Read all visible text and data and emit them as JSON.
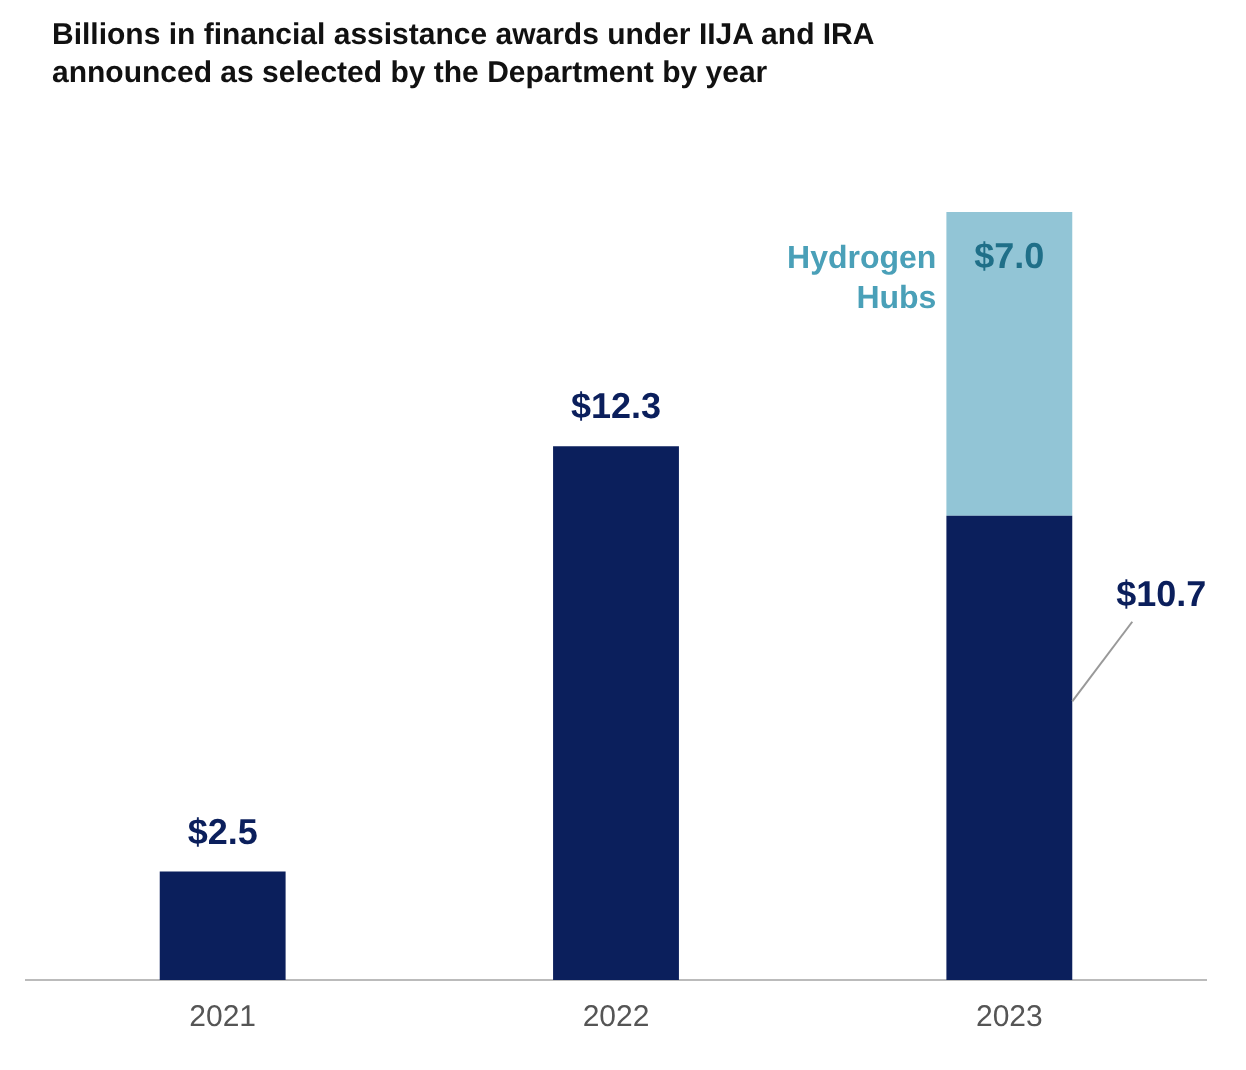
{
  "chart_data": {
    "type": "bar",
    "stacked": true,
    "title": "Billions in financial assistance awards under IIJA and IRA announced as selected by the Department by year",
    "categories": [
      "2021",
      "2022",
      "2023"
    ],
    "series": [
      {
        "color": "#0b1f5c",
        "values": [
          2.5,
          12.3,
          10.7
        ],
        "value_labels": [
          "$2.5",
          "$12.3",
          "$10.7"
        ]
      },
      {
        "name": "Hydrogen Hubs",
        "color": "#92c5d6",
        "values": [
          null,
          null,
          7.0
        ],
        "value_labels": [
          null,
          null,
          "$7.0"
        ]
      }
    ],
    "grid": false,
    "legend": false
  }
}
